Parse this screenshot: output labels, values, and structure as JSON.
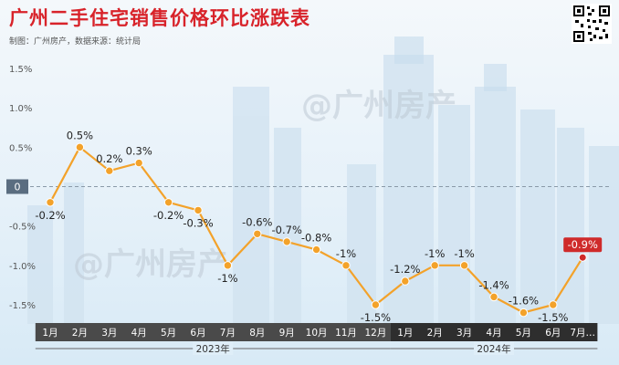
{
  "header": {
    "title": "广州二手住宅销售价格环比涨跌表",
    "source": "制图：广州房产，数据来源：统计局",
    "watermark": "@广州房产"
  },
  "colors": {
    "line": "#f3a22a",
    "point": "#f3a22a",
    "highlight": "#cf2a2a",
    "zero_box": "#5a6d80",
    "axis_dark": "#4a4a4a",
    "axis_light": "#2e2e2e"
  },
  "chart_data": {
    "type": "line",
    "title": "广州二手住宅销售价格环比涨跌表",
    "categories": [
      "1月",
      "2月",
      "3月",
      "4月",
      "5月",
      "6月",
      "7月",
      "8月",
      "9月",
      "10月",
      "11月",
      "12月",
      "1月",
      "2月",
      "3月",
      "4月",
      "5月",
      "6月",
      "7月…"
    ],
    "groups": [
      {
        "label": "2023年",
        "start": 0,
        "end": 11
      },
      {
        "label": "2024年",
        "start": 12,
        "end": 18
      }
    ],
    "values": [
      -0.2,
      0.5,
      0.2,
      0.3,
      -0.2,
      -0.3,
      -1,
      -0.6,
      -0.7,
      -0.8,
      -1,
      -1.5,
      -1.2,
      -1,
      -1,
      -1.4,
      -1.6,
      -1.5,
      -0.9
    ],
    "labels": [
      "-0.2%",
      "0.5%",
      "0.2%",
      "0.3%",
      "-0.2%",
      "-0.3%",
      "-1%",
      "-0.6%",
      "-0.7%",
      "-0.8%",
      "-1%",
      "-1.5%",
      "-1.2%",
      "-1%",
      "-1%",
      "-1.4%",
      "-1.6%",
      "-1.5%",
      "-0.9%"
    ],
    "ylim": [
      -1.5,
      1.5
    ],
    "yticks": [
      "1.5%",
      "1.0%",
      "0.5%",
      "0",
      "-0.5%",
      "-1.0%",
      "-1.5%"
    ],
    "ytick_values": [
      1.5,
      1.0,
      0.5,
      0,
      -0.5,
      -1.0,
      -1.5
    ],
    "zero_line": "dashed",
    "grid": false,
    "highlight_index": 18
  }
}
